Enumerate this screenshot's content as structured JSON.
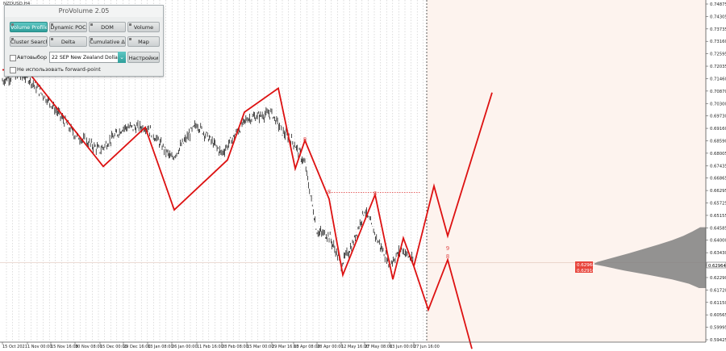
{
  "window": {
    "symbol_label": "NZDUSD,H4"
  },
  "panel": {
    "title": "ProVolume 2.05",
    "buttons": [
      {
        "label": "Volume Profile",
        "active": true
      },
      {
        "label": "Dynamic POC",
        "active": false
      },
      {
        "label": "DOM",
        "active": false
      },
      {
        "label": "Volume",
        "active": false
      },
      {
        "label": "Cluster Search",
        "active": false
      },
      {
        "label": "Delta",
        "active": false
      },
      {
        "label": "Cumulative Δ",
        "active": false
      },
      {
        "label": "Map",
        "active": false
      }
    ],
    "auto_select_label": "Автовыбор",
    "instrument_value": "22 SEP New Zealand Dollar",
    "settings_label": "Настройки",
    "forward_point_label": "Не использовать forward-point"
  },
  "price_axis": {
    "labels": [
      "0.74875",
      "0.74305",
      "0.73735",
      "0.73160",
      "0.72595",
      "0.72035",
      "0.71460",
      "0.70870",
      "0.70300",
      "0.69730",
      "0.69160",
      "0.68590",
      "0.68005",
      "0.67435",
      "0.66865",
      "0.66295",
      "0.65725",
      "0.65155",
      "0.64585",
      "0.64000",
      "0.63430",
      "0.62860",
      "0.62290",
      "0.61720",
      "0.61150",
      "0.60565",
      "0.59995",
      "0.59425"
    ],
    "current_price_tags": [
      "0.62964",
      "0.62916"
    ]
  },
  "time_axis": {
    "labels": [
      "15 Oct 2021",
      "1 Nov 00:00",
      "15 Nov 16:00",
      "30 Nov 08:00",
      "15 Dec 00:00",
      "29 Dec 16:00",
      "13 Jan 08:00",
      "26 Jan 00:00",
      "11 Feb 16:00",
      "28 Feb 08:00",
      "15 Mar 00:00",
      "29 Mar 16:00",
      "13 Apr 08:00",
      "28 Apr 00:00",
      "12 May 16:00",
      "27 May 08:00",
      "13 Jun 00:00",
      "27 Jun 16:00"
    ]
  },
  "annotations": {
    "wave_labels": [
      "8",
      "8",
      "8",
      "9",
      "8"
    ]
  },
  "colors": {
    "forecast_bg": "#fdf3ee",
    "zigzag": "#dd1111",
    "candles": "#000000",
    "profile": "#808080",
    "tag_fill": "#e8453c",
    "separator": "#444444"
  },
  "chart_data": {
    "type": "line",
    "title": "",
    "xlabel": "",
    "ylabel": "",
    "ylim": [
      0.5942,
      0.7488
    ],
    "series": [
      {
        "name": "",
        "x": [
          "15 Oct 2021",
          "22 Oct",
          "1 Nov",
          "15 Nov",
          "30 Nov",
          "15 Dec",
          "29 Dec",
          "13 Jan",
          "26 Jan",
          "11 Feb",
          "28 Feb",
          "15 Mar",
          "29 Mar",
          "5 Apr",
          "13 Apr",
          "20 Apr",
          "28 Apr",
          "5 May",
          "12 May",
          "20 May",
          "27 May",
          "5 Jun",
          "13 Jun",
          "20 Jun",
          "27 Jun"
        ],
        "y": [
          0.7135,
          0.716,
          0.715,
          0.703,
          0.6885,
          0.6815,
          0.692,
          0.692,
          0.6775,
          0.6935,
          0.68,
          0.696,
          0.6985,
          0.69,
          0.685,
          0.675,
          0.644,
          0.642,
          0.629,
          0.638,
          0.654,
          0.64,
          0.629,
          0.636,
          0.63
        ]
      }
    ],
    "zigzag": {
      "name": "",
      "x": [
        "15 Oct 2021",
        "1 Nov 00:00",
        "30 Nov 08:00",
        "29 Dec 16:00",
        "26 Jan 00:00",
        "28 Feb 08:00",
        "15 Mar 00:00",
        "29 Mar 16:00",
        "13 Apr 08:00",
        "20 Apr",
        "28 Apr 00:00",
        "12 May 16:00",
        "27 May 08:00",
        "13 Jun 00:00",
        "20 Jun",
        "27 Jun 16:00"
      ],
      "y": [
        0.7185,
        0.718,
        0.674,
        0.692,
        0.654,
        0.699,
        0.677,
        0.71,
        0.673,
        0.686,
        0.659,
        0.624,
        0.661,
        0.622,
        0.641,
        0.628
      ]
    },
    "forecast_paths": [
      {
        "name": "",
        "y": [
          0.628,
          0.665,
          0.642,
          0.708
        ]
      },
      {
        "name": "",
        "y": [
          0.628,
          0.608,
          0.631,
          0.59
        ]
      }
    ],
    "dotted_level": 0.662,
    "current_price": 0.6296,
    "volume_profile": {
      "price": [
        0.646,
        0.644,
        0.642,
        0.64,
        0.638,
        0.636,
        0.634,
        0.632,
        0.63,
        0.629,
        0.628,
        0.626,
        0.624,
        0.622,
        0.62,
        0.618
      ],
      "volume": [
        0.05,
        0.12,
        0.2,
        0.3,
        0.42,
        0.55,
        0.68,
        0.82,
        0.96,
        1.0,
        0.9,
        0.72,
        0.5,
        0.3,
        0.15,
        0.06
      ]
    }
  }
}
